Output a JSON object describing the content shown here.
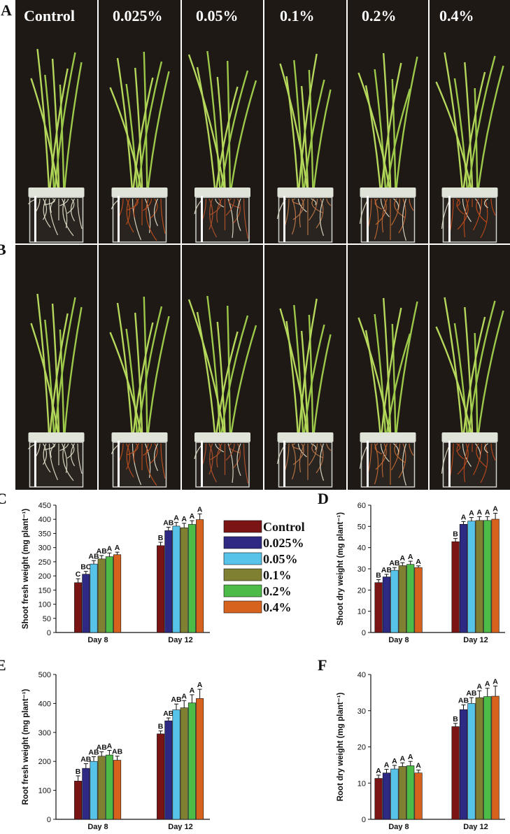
{
  "figure": {
    "panel_letters": [
      "A",
      "B",
      "C",
      "D",
      "E",
      "F"
    ],
    "photo_row_labels": [
      "Control",
      "0.025%",
      "0.05%",
      "0.1%",
      "0.2%",
      "0.4%"
    ]
  },
  "legend": {
    "entries": [
      {
        "label": "Control",
        "color": "#7B1414"
      },
      {
        "label": "0.025%",
        "color": "#2E2A84"
      },
      {
        "label": "0.05%",
        "color": "#57C3E8"
      },
      {
        "label": "0.1%",
        "color": "#808032"
      },
      {
        "label": "0.2%",
        "color": "#4DBB48"
      },
      {
        "label": "0.4%",
        "color": "#D7621E"
      }
    ]
  },
  "chart_data": [
    {
      "panel": "C",
      "type": "bar",
      "ylabel": "Shoot fresh weight (mg plant⁻¹)",
      "ylim": [
        0,
        450
      ],
      "yticks": [
        0,
        50,
        100,
        150,
        200,
        250,
        300,
        350,
        400,
        450
      ],
      "categories": [
        "Day 8",
        "Day 12"
      ],
      "series": [
        {
          "name": "Control",
          "values": [
            176,
            307
          ],
          "errors": [
            14,
            12
          ],
          "letters": [
            "C",
            "B"
          ]
        },
        {
          "name": "0.025%",
          "values": [
            206,
            360
          ],
          "errors": [
            10,
            12
          ],
          "letters": [
            "BC",
            "AB"
          ]
        },
        {
          "name": "0.05%",
          "values": [
            242,
            376
          ],
          "errors": [
            12,
            13
          ],
          "letters": [
            "AB",
            "A"
          ]
        },
        {
          "name": "0.1%",
          "values": [
            260,
            370
          ],
          "errors": [
            12,
            16
          ],
          "letters": [
            "AB",
            "A"
          ]
        },
        {
          "name": "0.2%",
          "values": [
            268,
            382
          ],
          "errors": [
            13,
            13
          ],
          "letters": [
            "A",
            "A"
          ]
        },
        {
          "name": "0.4%",
          "values": [
            275,
            399
          ],
          "errors": [
            9,
            20
          ],
          "letters": [
            "A",
            "A"
          ]
        }
      ]
    },
    {
      "panel": "D",
      "type": "bar",
      "ylabel": "Shoot dry weight (mg plant⁻¹)",
      "ylim": [
        0,
        60
      ],
      "yticks": [
        0,
        10,
        20,
        30,
        40,
        50,
        60
      ],
      "categories": [
        "Day 8",
        "Day 12"
      ],
      "series": [
        {
          "name": "Control",
          "values": [
            23.5,
            42.8
          ],
          "errors": [
            1.4,
            1.5
          ],
          "letters": [
            "B",
            "B"
          ]
        },
        {
          "name": "0.025%",
          "values": [
            26.2,
            51.0
          ],
          "errors": [
            1.2,
            1.3
          ],
          "letters": [
            "AB",
            "A"
          ]
        },
        {
          "name": "0.05%",
          "values": [
            29.3,
            52.5
          ],
          "errors": [
            1.3,
            1.7
          ],
          "letters": [
            "AB",
            "A"
          ]
        },
        {
          "name": "0.1%",
          "values": [
            31.5,
            52.8
          ],
          "errors": [
            1.4,
            1.8
          ],
          "letters": [
            "A",
            "A"
          ]
        },
        {
          "name": "0.2%",
          "values": [
            32.1,
            52.8
          ],
          "errors": [
            1.5,
            1.8
          ],
          "letters": [
            "A",
            "A"
          ]
        },
        {
          "name": "0.4%",
          "values": [
            30.6,
            53.4
          ],
          "errors": [
            0.8,
            2.8
          ],
          "letters": [
            "A",
            "A"
          ]
        }
      ]
    },
    {
      "panel": "E",
      "type": "bar",
      "ylabel": "Root fresh weight (mg plant⁻¹)",
      "ylim": [
        0,
        500
      ],
      "yticks": [
        0,
        100,
        200,
        300,
        400,
        500
      ],
      "categories": [
        "Day 8",
        "Day 12"
      ],
      "series": [
        {
          "name": "Control",
          "values": [
            132,
            295
          ],
          "errors": [
            18,
            10
          ],
          "letters": [
            "B",
            "B"
          ]
        },
        {
          "name": "0.025%",
          "values": [
            176,
            340
          ],
          "errors": [
            16,
            10
          ],
          "letters": [
            "AB",
            "AB"
          ]
        },
        {
          "name": "0.05%",
          "values": [
            200,
            378
          ],
          "errors": [
            16,
            20
          ],
          "letters": [
            "AB",
            "AB"
          ]
        },
        {
          "name": "0.1%",
          "values": [
            218,
            385
          ],
          "errors": [
            15,
            25
          ],
          "letters": [
            "AB",
            "A"
          ]
        },
        {
          "name": "0.2%",
          "values": [
            222,
            402
          ],
          "errors": [
            16,
            28
          ],
          "letters": [
            "A",
            "A"
          ]
        },
        {
          "name": "0.4%",
          "values": [
            204,
            417
          ],
          "errors": [
            14,
            32
          ],
          "letters": [
            "AB",
            "A"
          ]
        }
      ]
    },
    {
      "panel": "F",
      "type": "bar",
      "ylabel": "Root dry weight (mg plant⁻¹)",
      "ylim": [
        0,
        40
      ],
      "yticks": [
        0,
        10,
        20,
        30,
        40
      ],
      "categories": [
        "Day 8",
        "Day 12"
      ],
      "series": [
        {
          "name": "Control",
          "values": [
            11.3,
            25.6
          ],
          "errors": [
            0.9,
            0.9
          ],
          "letters": [
            "A",
            "B"
          ]
        },
        {
          "name": "0.025%",
          "values": [
            12.8,
            30.3
          ],
          "errors": [
            1.0,
            1.3
          ],
          "letters": [
            "A",
            "AB"
          ]
        },
        {
          "name": "0.05%",
          "values": [
            13.9,
            32.0
          ],
          "errors": [
            1.0,
            1.6
          ],
          "letters": [
            "A",
            "AB"
          ]
        },
        {
          "name": "0.1%",
          "values": [
            14.6,
            33.6
          ],
          "errors": [
            1.0,
            1.9
          ],
          "letters": [
            "A",
            "A"
          ]
        },
        {
          "name": "0.2%",
          "values": [
            14.8,
            33.9
          ],
          "errors": [
            1.2,
            2.3
          ],
          "letters": [
            "A",
            "A"
          ]
        },
        {
          "name": "0.4%",
          "values": [
            12.8,
            34.0
          ],
          "errors": [
            0.8,
            2.8
          ],
          "letters": [
            "A",
            "A"
          ]
        }
      ]
    }
  ]
}
